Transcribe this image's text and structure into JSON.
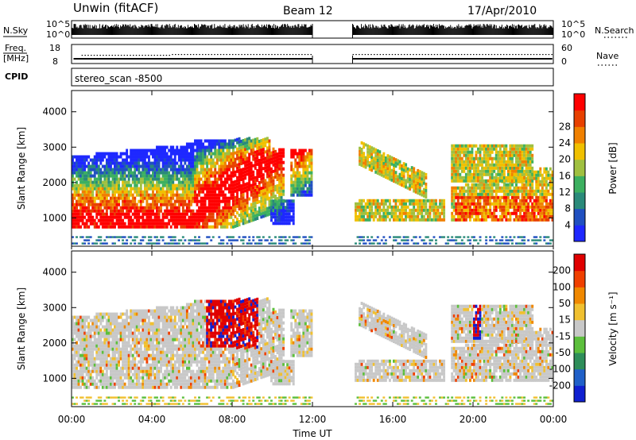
{
  "header": {
    "title": "Unwin (fitACF)",
    "beam": "Beam 12",
    "date": "17/Apr/2010"
  },
  "param_panels": {
    "nsky": {
      "label": "N.Sky",
      "ticks": [
        "10^5",
        "10^0"
      ]
    },
    "nsearch": {
      "label": "N.Search",
      "ticks": [
        "10^5",
        "10^0"
      ]
    },
    "freq": {
      "label_line1": "Freq.",
      "label_line2": "[MHz]",
      "ticks": [
        "18",
        "8"
      ]
    },
    "nave": {
      "label": "Nave",
      "ticks": [
        "60",
        "0"
      ]
    },
    "cpid": {
      "label": "CPID",
      "value": "stereo_scan -8500"
    }
  },
  "chart_data": [
    {
      "type": "heatmap",
      "name": "power-panel",
      "ylabel": "Slant Range [km]",
      "y_ticks": [
        "1000",
        "2000",
        "3000",
        "4000"
      ],
      "ylim": [
        200,
        4600
      ],
      "colorbar": {
        "label": "Power [dB]",
        "ticks": [
          "4",
          "8",
          "12",
          "16",
          "20",
          "24",
          "28"
        ],
        "colors": [
          "#1e28ff",
          "#2050c0",
          "#2a8a7a",
          "#3cb060",
          "#a0c040",
          "#f0c000",
          "#f08000",
          "#e84000",
          "#ff0000"
        ]
      }
    },
    {
      "type": "heatmap",
      "name": "velocity-panel",
      "ylabel": "Slant Range [km]",
      "y_ticks": [
        "1000",
        "2000",
        "3000",
        "4000"
      ],
      "ylim": [
        200,
        4600
      ],
      "colorbar": {
        "label": "Velocity [m s⁻¹]",
        "ticks": [
          "200",
          "100",
          "50",
          "15",
          "-15",
          "-50",
          "-100",
          "-200"
        ],
        "colors": [
          "#1020d0",
          "#2060c8",
          "#2e8e5a",
          "#5cbf3c",
          "#c8c8c8",
          "#f0c030",
          "#f08800",
          "#f04000",
          "#e00000"
        ]
      }
    }
  ],
  "x_axis": {
    "label": "Time UT",
    "ticks": [
      "00:00",
      "04:00",
      "08:00",
      "12:00",
      "16:00",
      "20:00",
      "00:00"
    ],
    "gap_hours": [
      12,
      14
    ]
  }
}
